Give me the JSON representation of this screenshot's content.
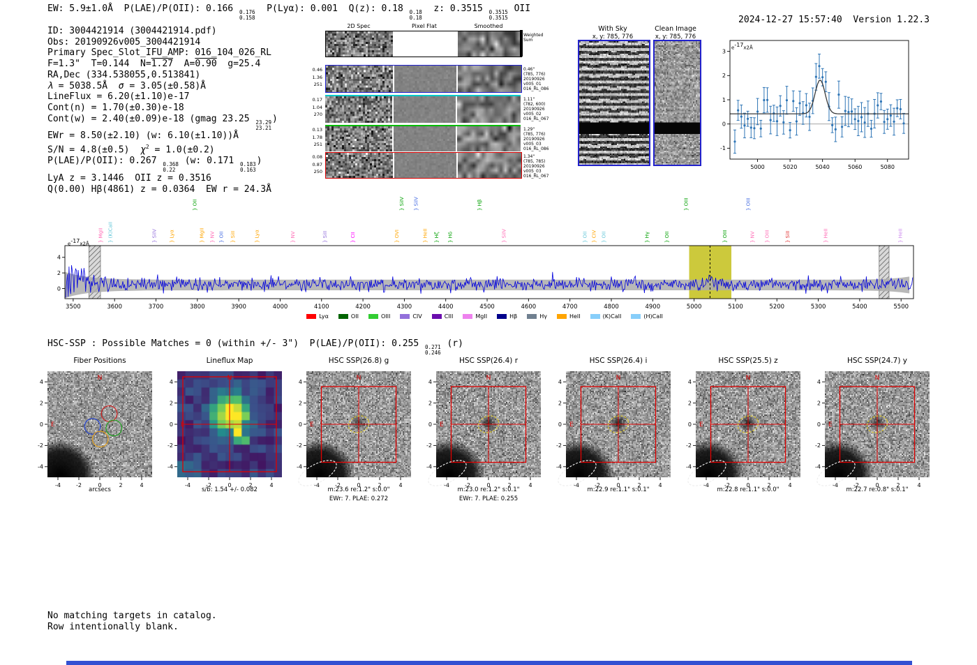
{
  "meta": {
    "timestamp": "2024-12-27 15:57:40",
    "separator": "  ",
    "version": "Version 1.22.3"
  },
  "colors": {
    "bottom_strip": "#3350d2",
    "panel_border": "#2222cc",
    "box_red": "#e00000",
    "marker_yellow": "#d8c43c",
    "marker_white": "#eeeeee",
    "compass": "#d40000",
    "row_blue": "#2020d0",
    "row_cyan": "#00c8c8",
    "row_green": "#00bb00",
    "row_red": "#dd0000"
  },
  "header_segments": [
    {
      "t": "EW: 5.9±1.0Å  P(LAE)/P(OII): 0.166 "
    },
    {
      "stack": [
        "0.176",
        "0.158"
      ]
    },
    {
      "t": "  P(Lyα): 0.001  Q(z): 0.18 "
    },
    {
      "stack": [
        "0.18",
        "0.18"
      ]
    },
    {
      "t": "  z: 0.3515 "
    },
    {
      "stack": [
        "0.3515",
        "0.3515"
      ]
    },
    {
      "t": " OII"
    }
  ],
  "info_lines": [
    {
      "segs": [
        {
          "t": "ID: 3004421914 (3004421914.pdf)"
        }
      ]
    },
    {
      "segs": [
        {
          "t": "Obs: 20190926v005_3004421914"
        }
      ]
    },
    {
      "segs": [
        {
          "t": "Primary Spec_Slot_IFU_AMP: 016_104_026_RL"
        }
      ]
    },
    {
      "segs": [
        {
          "t": "F=1.3\"  T=0.144  N="
        },
        {
          "over": "1.27"
        },
        {
          "t": "  A="
        },
        {
          "over": "0.90"
        },
        {
          "t": "  g=25.4"
        }
      ]
    },
    {
      "segs": [
        {
          "t": "RA,Dec (334.538055,0.513841)"
        }
      ]
    },
    {
      "segs": [
        {
          "i": "λ"
        },
        {
          "t": " = 5038.5Å  "
        },
        {
          "i": "σ"
        },
        {
          "t": " = 3.05(±0.58)Å"
        }
      ]
    },
    {
      "segs": [
        {
          "t": "LineFlux = 6.20(±1.10)e-17"
        }
      ]
    },
    {
      "segs": [
        {
          "t": "Cont(n) = 1.70(±0.30)e-18"
        }
      ]
    },
    {
      "segs": [
        {
          "t": "Cont(w) = 2.40(±0.09)e-18 (gmag 23.25 "
        },
        {
          "stack": [
            "23.29",
            "23.21"
          ]
        },
        {
          "t": ")"
        }
      ]
    },
    {
      "segs": [
        {
          "t": "EWr = 8.50(±2.10) (w: 6.10(±1.10))Å"
        }
      ]
    },
    {
      "segs": [
        {
          "t": "S/N = 4.8(±0.5)  "
        },
        {
          "i": "χ"
        },
        {
          "sup": "2"
        },
        {
          "t": " = 1.0(±0.2)"
        }
      ]
    },
    {
      "segs": [
        {
          "t": "P(LAE)/P(OII): 0.267 "
        },
        {
          "stack": [
            "0.368",
            "0.22"
          ]
        },
        {
          "t": " (w: 0.171 "
        },
        {
          "stack": [
            "0.183",
            "0.163"
          ]
        },
        {
          "t": ")"
        }
      ]
    },
    {
      "segs": [
        {
          "t": "LyA z = 3.1446  OII z = 0.3516"
        }
      ]
    },
    {
      "segs": [
        {
          "t": "Q(0.00) Hβ(4861) z = 0.0364  EW r = 24.3Å"
        }
      ]
    }
  ],
  "spec2d": {
    "col_headers": [
      "2D Spec",
      "Pixel Flat",
      "Smoothed"
    ],
    "rows": [
      {
        "left": [],
        "right": [
          "Weighted",
          "Sum"
        ],
        "border": "black"
      },
      {
        "left": [
          "0.46",
          "1.36",
          "251"
        ],
        "right": [
          "0.46\"",
          "(785, 776)",
          "20190926",
          "v005_01",
          "016_RL_086"
        ],
        "border": "blue"
      },
      {
        "left": [
          "0.17",
          "1.04",
          "270"
        ],
        "right": [
          "1.11\"",
          "(782, 600)",
          "20190926",
          "v005_02",
          "016_RL_067"
        ],
        "border": "cyan-top"
      },
      {
        "left": [
          "0.13",
          "1.78",
          "251"
        ],
        "right": [
          "1.29\"",
          "(785, 776)",
          "20190926",
          "v005_03",
          "016_RL_086"
        ],
        "border": "green-top"
      },
      {
        "left": [
          "0.08",
          "0.87",
          "250"
        ],
        "right": [
          "1.34\"",
          "(785, 785)",
          "20190926",
          "v005_03",
          "016_RL_067"
        ],
        "border": "red"
      }
    ]
  },
  "sky_panels": [
    {
      "title": "With Sky",
      "coords": "x, y: 785, 776"
    },
    {
      "title": "Clean Image",
      "coords": "x, y: 785, 776"
    }
  ],
  "chart_data": [
    {
      "type": "line",
      "name": "zoomed-line-fit",
      "ylabel_segs": [
        {
          "t": "e"
        },
        {
          "sup": "-17"
        },
        {
          "t": "x2Å"
        }
      ],
      "xlim": [
        4983,
        5093
      ],
      "ylim": [
        -1.45,
        3.45
      ],
      "xticks": [
        5000,
        5020,
        5040,
        5060,
        5080
      ],
      "yticks": [
        -1,
        0,
        1,
        2,
        3
      ],
      "data_color": "#2e75b6",
      "fit": {
        "center": 5038.5,
        "sigma": 3.05,
        "continuum": 0.42,
        "amplitude": 1.4,
        "color": "#3a3a3a"
      },
      "noise": {
        "seed": 13,
        "baseline": 0.42,
        "sd": 0.34,
        "step": 2,
        "peak_amplitude": 1.9,
        "err_lo": 0.3,
        "err_hi": 0.62
      }
    },
    {
      "type": "line",
      "name": "full-spectrum",
      "ylabel_segs": [
        {
          "t": "e"
        },
        {
          "sup": "-17"
        },
        {
          "t": "x2Å"
        }
      ],
      "xlim": [
        3480,
        5530
      ],
      "ylim": [
        -1.3,
        5.5
      ],
      "xticks": [
        3500,
        3600,
        3700,
        3800,
        3900,
        4000,
        4100,
        4200,
        4300,
        4400,
        4500,
        4600,
        4700,
        4800,
        4900,
        5000,
        5100,
        5200,
        5300,
        5400,
        5500
      ],
      "yticks": [
        0,
        2,
        4
      ],
      "line_color": "#0000dd",
      "err_fill": "#ababab",
      "highlight_band": {
        "x0": 4988,
        "x1": 5090,
        "color": "#c9c632"
      },
      "detect_wavelength": 5038.5,
      "hatch_bands": [
        [
          3538,
          3566
        ],
        [
          5447,
          5471
        ]
      ],
      "noise": {
        "seed": 29,
        "baseline": 0.5,
        "sd": 0.42,
        "step": 2
      },
      "line_labels": [
        {
          "x": 3570,
          "t": "MgII",
          "c": "#ff69b4",
          "tier": 1
        },
        {
          "x": 3594,
          "t": "(K)CaII",
          "c": "#62c6d8",
          "tier": 1
        },
        {
          "x": 3700,
          "t": "SiIV",
          "c": "#9370db",
          "tier": 1
        },
        {
          "x": 3742,
          "t": "Lyα",
          "c": "#ffa500",
          "tier": 1
        },
        {
          "x": 3798,
          "t": "OII",
          "c": "#00a000",
          "tier": 2
        },
        {
          "x": 3815,
          "t": "MgII",
          "c": "#ffa500",
          "tier": 1
        },
        {
          "x": 3840,
          "t": "NV",
          "c": "#ff69b4",
          "tier": 1
        },
        {
          "x": 3862,
          "t": "OII",
          "c": "#4169e1",
          "tier": 1
        },
        {
          "x": 3890,
          "t": "SiII",
          "c": "#ffa500",
          "tier": 1
        },
        {
          "x": 3948,
          "t": "Lyα",
          "c": "#ffa500",
          "tier": 1
        },
        {
          "x": 4035,
          "t": "NV",
          "c": "#ff69b4",
          "tier": 1
        },
        {
          "x": 4112,
          "t": "SiII",
          "c": "#9370db",
          "tier": 1
        },
        {
          "x": 4180,
          "t": "CII",
          "c": "#ff00ff",
          "tier": 1
        },
        {
          "x": 4286,
          "t": "OVI",
          "c": "#ffa500",
          "tier": 1
        },
        {
          "x": 4298,
          "t": "SiIV",
          "c": "#00a000",
          "tier": 2
        },
        {
          "x": 4332,
          "t": "SiIV",
          "c": "#4169e1",
          "tier": 2
        },
        {
          "x": 4354,
          "t": "HeII",
          "c": "#ffa500",
          "tier": 1
        },
        {
          "x": 4382,
          "t": "Hζ",
          "c": "#00a000",
          "tier": 1
        },
        {
          "x": 4415,
          "t": "Hδ",
          "c": "#00a000",
          "tier": 1
        },
        {
          "x": 4486,
          "t": "Hβ",
          "c": "#00a000",
          "tier": 2
        },
        {
          "x": 4545,
          "t": "SiIV",
          "c": "#ff69b4",
          "tier": 1
        },
        {
          "x": 4740,
          "t": "OII",
          "c": "#62c6d8",
          "tier": 1
        },
        {
          "x": 4762,
          "t": "CIV",
          "c": "#ffa500",
          "tier": 1
        },
        {
          "x": 4786,
          "t": "OII",
          "c": "#62c6d8",
          "tier": 1
        },
        {
          "x": 4890,
          "t": "Hγ",
          "c": "#00a000",
          "tier": 1
        },
        {
          "x": 4938,
          "t": "OII",
          "c": "#00a000",
          "tier": 1
        },
        {
          "x": 4985,
          "t": "OIII",
          "c": "#00a000",
          "tier": 2
        },
        {
          "x": 5078,
          "t": "OIII",
          "c": "#00a000",
          "tier": 1
        },
        {
          "x": 5135,
          "t": "OIII",
          "c": "#4169e1",
          "tier": 2
        },
        {
          "x": 5145,
          "t": "NV",
          "c": "#ff69b4",
          "tier": 1
        },
        {
          "x": 5180,
          "t": "OIII",
          "c": "#ff69b4",
          "tier": 1
        },
        {
          "x": 5230,
          "t": "SiII",
          "c": "#e03030",
          "tier": 1
        },
        {
          "x": 5322,
          "t": "HeII",
          "c": "#ff69b4",
          "tier": 1
        },
        {
          "x": 5502,
          "t": "HeII",
          "c": "#cc88ee",
          "tier": 1
        }
      ],
      "legend": [
        {
          "label": "Lyα",
          "color": "#ff0000"
        },
        {
          "label": "OII",
          "color": "#006400"
        },
        {
          "label": "OIII",
          "color": "#32cd32"
        },
        {
          "label": "CIV",
          "color": "#9370db"
        },
        {
          "label": "CIII",
          "color": "#6a0dad"
        },
        {
          "label": "MgII",
          "color": "#ee82ee"
        },
        {
          "label": "Hβ",
          "color": "#00008b"
        },
        {
          "label": "Hγ",
          "color": "#708090"
        },
        {
          "label": "HeII",
          "color": "#ffa500"
        },
        {
          "label": "(K)CaII",
          "color": "#87cefa"
        },
        {
          "label": "(H)CaII",
          "color": "#87cefa"
        }
      ]
    }
  ],
  "hsc_segments": [
    {
      "t": "HSC-SSP : Possible Matches = 0 (within +/- 3\")  P(LAE)/P(OII): 0.255 "
    },
    {
      "stack": [
        "0.271",
        "0.246"
      ]
    },
    {
      "t": " (r)"
    }
  ],
  "cutout_axis": {
    "xticks": [
      -4,
      -2,
      0,
      2,
      4
    ],
    "yticks": [
      4,
      2,
      0,
      -2,
      -4
    ],
    "compass_n": "N",
    "compass_e": "E"
  },
  "cutouts": [
    {
      "title": "Fiber Positions",
      "type": "fibers",
      "xlabel": "arcsecs",
      "captions": []
    },
    {
      "title": "Lineflux Map",
      "type": "lineflux",
      "captions": [
        "s/b: 1.54 +/- 0.082"
      ]
    },
    {
      "title": "HSC SSP(26.8) g",
      "type": "hsc",
      "captions": [
        "m:23.6 re:1.2\" s:0.0\"",
        "EWr: 7. PLAE: 0.272"
      ],
      "center_intensity": 0.55
    },
    {
      "title": "HSC SSP(26.4) r",
      "type": "hsc",
      "captions": [
        "m:23.0 re:1.2\" s:0.1\"",
        "EWr: 7. PLAE: 0.255"
      ],
      "center_intensity": 0.7
    },
    {
      "title": "HSC SSP(26.4) i",
      "type": "hsc",
      "captions": [
        "m:22.9 re:1.1\" s:0.1\""
      ],
      "center_intensity": 0.8
    },
    {
      "title": "HSC SSP(25.5) z",
      "type": "hsc",
      "captions": [
        "m:22.8 re:1.1\" s:0.0\""
      ],
      "center_intensity": 0.75
    },
    {
      "title": "HSC SSP(24.7) y",
      "type": "hsc",
      "captions": [
        "m:22.7 re:0.8\" s:0.1\""
      ],
      "center_intensity": 0.6
    }
  ],
  "fiber_positions": {
    "radius_arcsec": 0.75,
    "gray": [
      [
        -2.2,
        2.3
      ],
      [
        -0.7,
        2.3
      ],
      [
        0.8,
        2.3
      ],
      [
        -3.0,
        1.05
      ],
      [
        -1.5,
        1.05
      ],
      [
        0.0,
        1.05
      ],
      [
        -2.95,
        -0.2
      ],
      [
        -3.7,
        -0.2
      ],
      [
        -2.2,
        -1.45
      ],
      [
        -0.7,
        -1.45
      ]
    ],
    "blue": [
      -0.7,
      -0.2
    ],
    "red": [
      0.9,
      1.0
    ],
    "green": [
      1.35,
      -0.35
    ],
    "orange": [
      0.05,
      -1.4
    ]
  },
  "footer_lines": [
    "No matching targets in catalog.",
    "Row intentionally blank."
  ]
}
